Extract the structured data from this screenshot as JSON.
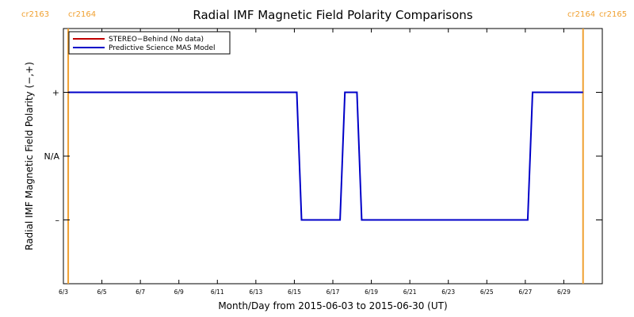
{
  "chart_data": {
    "type": "line",
    "title": "Radial IMF Magnetic Field Polarity Comparisons",
    "xlabel": "Month/Day from 2015-06-03 to 2015-06-30 (UT)",
    "ylabel": "Radial IMF Magnetic Field Polarity (−,+)",
    "xlim": [
      "2015-06-03",
      "2015-06-30"
    ],
    "x_ticks": [
      {
        "date": "2015-06-03",
        "label": "6/3"
      },
      {
        "date": "2015-06-05",
        "label": "6/5"
      },
      {
        "date": "2015-06-07",
        "label": "6/7"
      },
      {
        "date": "2015-06-09",
        "label": "6/9"
      },
      {
        "date": "2015-06-11",
        "label": "6/11"
      },
      {
        "date": "2015-06-13",
        "label": "6/13"
      },
      {
        "date": "2015-06-15",
        "label": "6/15"
      },
      {
        "date": "2015-06-17",
        "label": "6/17"
      },
      {
        "date": "2015-06-19",
        "label": "6/19"
      },
      {
        "date": "2015-06-21",
        "label": "6/21"
      },
      {
        "date": "2015-06-23",
        "label": "6/23"
      },
      {
        "date": "2015-06-25",
        "label": "6/25"
      },
      {
        "date": "2015-06-27",
        "label": "6/27"
      },
      {
        "date": "2015-06-29",
        "label": "6/29"
      }
    ],
    "y_ticks": [
      {
        "value": 1,
        "label": "+"
      },
      {
        "value": 0,
        "label": "N/A"
      },
      {
        "value": -1,
        "label": "–"
      }
    ],
    "ylim": [
      -2,
      2
    ],
    "legend_position": "top-left",
    "carrington_markers": [
      {
        "date": "2015-06-03 06:00",
        "left_label": "cr2163",
        "right_label": "cr2164",
        "color": "#f0a030"
      },
      {
        "date": "2015-06-30 00:00",
        "left_label": "cr2164",
        "right_label": "cr2165",
        "color": "#f0a030"
      }
    ],
    "series": [
      {
        "name": "STEREO−Behind (No data)",
        "color": "#c00000",
        "points": []
      },
      {
        "name": "Predictive Science MAS Model",
        "color": "#0000c8",
        "points": [
          {
            "x": "2015-06-03 06:00",
            "y": 1
          },
          {
            "x": "2015-06-15 03:00",
            "y": 1
          },
          {
            "x": "2015-06-15 09:00",
            "y": -1
          },
          {
            "x": "2015-06-17 09:00",
            "y": -1
          },
          {
            "x": "2015-06-17 15:00",
            "y": 1
          },
          {
            "x": "2015-06-18 06:00",
            "y": 1
          },
          {
            "x": "2015-06-18 12:00",
            "y": -1
          },
          {
            "x": "2015-06-27 03:00",
            "y": -1
          },
          {
            "x": "2015-06-27 09:00",
            "y": 1
          },
          {
            "x": "2015-06-30 00:00",
            "y": 1
          }
        ]
      }
    ]
  }
}
